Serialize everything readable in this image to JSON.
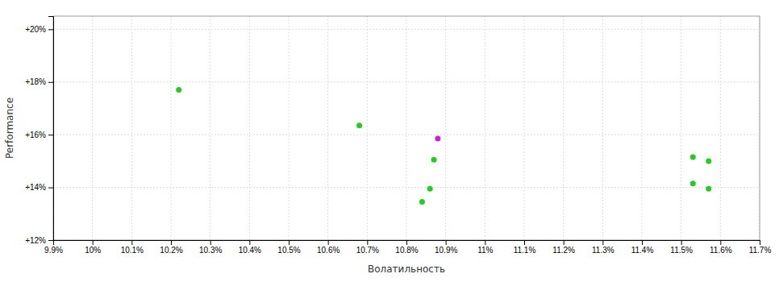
{
  "chart_data": {
    "type": "scatter",
    "xlabel": "Волатильность",
    "ylabel": "Performance",
    "xlim": [
      0.099,
      0.117
    ],
    "ylim": [
      0.12,
      0.205
    ],
    "xticks": [
      {
        "value": 0.099,
        "label": "9.9%"
      },
      {
        "value": 0.1,
        "label": "10%"
      },
      {
        "value": 0.101,
        "label": "10.1%"
      },
      {
        "value": 0.102,
        "label": "10.2%"
      },
      {
        "value": 0.103,
        "label": "10.3%"
      },
      {
        "value": 0.104,
        "label": "10.4%"
      },
      {
        "value": 0.105,
        "label": "10.5%"
      },
      {
        "value": 0.106,
        "label": "10.6%"
      },
      {
        "value": 0.107,
        "label": "10.7%"
      },
      {
        "value": 0.108,
        "label": "10.8%"
      },
      {
        "value": 0.109,
        "label": "10.9%"
      },
      {
        "value": 0.11,
        "label": "11%"
      },
      {
        "value": 0.111,
        "label": "11.1%"
      },
      {
        "value": 0.112,
        "label": "11.2%"
      },
      {
        "value": 0.113,
        "label": "11.3%"
      },
      {
        "value": 0.114,
        "label": "11.4%"
      },
      {
        "value": 0.115,
        "label": "11.5%"
      },
      {
        "value": 0.116,
        "label": "11.6%"
      },
      {
        "value": 0.117,
        "label": "11.7%"
      }
    ],
    "yticks": [
      {
        "value": 0.12,
        "label": "+12%"
      },
      {
        "value": 0.14,
        "label": "+14%"
      },
      {
        "value": 0.16,
        "label": "+16%"
      },
      {
        "value": 0.18,
        "label": "+18%"
      },
      {
        "value": 0.2,
        "label": "+20%"
      }
    ],
    "grid": true,
    "series": [
      {
        "color": "#22cc22",
        "x": [
          0.1022,
          0.1068,
          0.1087,
          0.1086,
          0.1084,
          0.1153,
          0.1157,
          0.1153,
          0.1157
        ],
        "values": [
          0.177,
          0.1635,
          0.1505,
          0.1395,
          0.1345,
          0.1515,
          0.15,
          0.1415,
          0.1395
        ]
      },
      {
        "color": "#cc22cc",
        "x": [
          0.1088
        ],
        "values": [
          0.1585
        ]
      }
    ]
  }
}
